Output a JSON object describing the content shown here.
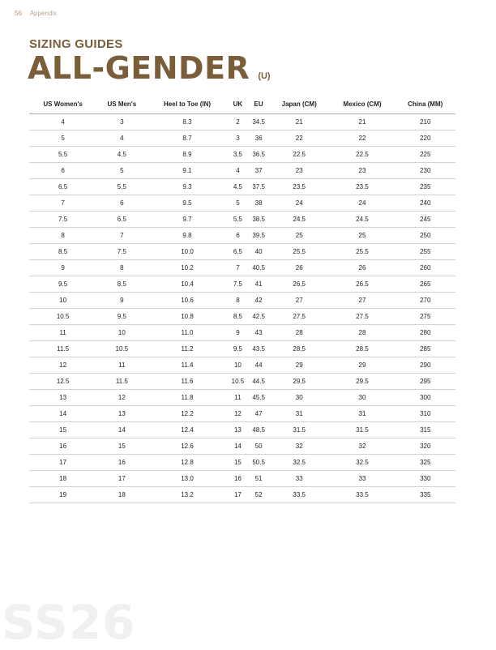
{
  "header": {
    "page_number": "56",
    "section": "Appendix"
  },
  "subtitle": "SIZING GUIDES",
  "title": "ALL-GENDER",
  "title_suffix": "(U)",
  "table": {
    "columns": [
      "US Women's",
      "US Men's",
      "Heel to Toe (IN)",
      "UK",
      "EU",
      "Japan (CM)",
      "Mexico (CM)",
      "China (MM)"
    ],
    "rows": [
      [
        "4",
        "3",
        "8.3",
        "2",
        "34.5",
        "21",
        "21",
        "210"
      ],
      [
        "5",
        "4",
        "8.7",
        "3",
        "36",
        "22",
        "22",
        "220"
      ],
      [
        "5.5",
        "4.5",
        "8.9",
        "3.5",
        "36.5",
        "22.5",
        "22.5",
        "225"
      ],
      [
        "6",
        "5",
        "9.1",
        "4",
        "37",
        "23",
        "23",
        "230"
      ],
      [
        "6.5",
        "5.5",
        "9.3",
        "4.5",
        "37.5",
        "23.5",
        "23.5",
        "235"
      ],
      [
        "7",
        "6",
        "9.5",
        "5",
        "38",
        "24",
        "24",
        "240"
      ],
      [
        "7.5",
        "6.5",
        "9.7",
        "5.5",
        "38.5",
        "24.5",
        "24.5",
        "245"
      ],
      [
        "8",
        "7",
        "9.8",
        "6",
        "39.5",
        "25",
        "25",
        "250"
      ],
      [
        "8.5",
        "7.5",
        "10.0",
        "6.5",
        "40",
        "25.5",
        "25.5",
        "255"
      ],
      [
        "9",
        "8",
        "10.2",
        "7",
        "40.5",
        "26",
        "26",
        "260"
      ],
      [
        "9.5",
        "8.5",
        "10.4",
        "7.5",
        "41",
        "26.5",
        "26.5",
        "265"
      ],
      [
        "10",
        "9",
        "10.6",
        "8",
        "42",
        "27",
        "27",
        "270"
      ],
      [
        "10.5",
        "9.5",
        "10.8",
        "8.5",
        "42.5",
        "27.5",
        "27.5",
        "275"
      ],
      [
        "11",
        "10",
        "11.0",
        "9",
        "43",
        "28",
        "28",
        "280"
      ],
      [
        "11.5",
        "10.5",
        "11.2",
        "9.5",
        "43.5",
        "28.5",
        "28.5",
        "285"
      ],
      [
        "12",
        "11",
        "11.4",
        "10",
        "44",
        "29",
        "29",
        "290"
      ],
      [
        "12.5",
        "11.5",
        "11.6",
        "10.5",
        "44.5",
        "29.5",
        "29.5",
        "295"
      ],
      [
        "13",
        "12",
        "11.8",
        "11",
        "45.5",
        "30",
        "30",
        "300"
      ],
      [
        "14",
        "13",
        "12.2",
        "12",
        "47",
        "31",
        "31",
        "310"
      ],
      [
        "15",
        "14",
        "12.4",
        "13",
        "48.5",
        "31.5",
        "31.5",
        "315"
      ],
      [
        "16",
        "15",
        "12.6",
        "14",
        "50",
        "32",
        "32",
        "320"
      ],
      [
        "17",
        "16",
        "12.8",
        "15",
        "50.5",
        "32.5",
        "32.5",
        "325"
      ],
      [
        "18",
        "17",
        "13.0",
        "16",
        "51",
        "33",
        "33",
        "330"
      ],
      [
        "19",
        "18",
        "13.2",
        "17",
        "52",
        "33.5",
        "33.5",
        "335"
      ]
    ]
  },
  "watermark": "SS26",
  "colors": {
    "brand": "#7a5e3a"
  }
}
